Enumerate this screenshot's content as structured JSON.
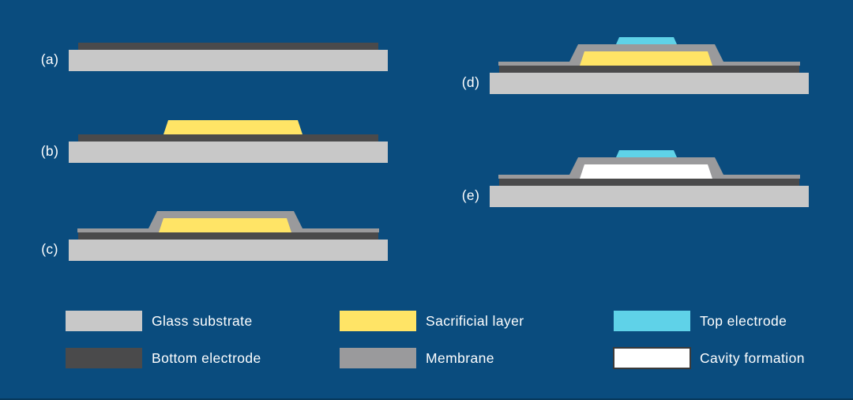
{
  "figure": {
    "background_color": "#0A4C7E",
    "bottom_edge_color": "#07395C",
    "text_color": "#FFFFFF"
  },
  "colors": {
    "glass_substrate": "#C8C8C8",
    "bottom_electrode": "#4A4A4B",
    "sacrificial_layer": "#FFE466",
    "membrane": "#9A9A9C",
    "top_electrode": "#5FD2E8",
    "cavity": "#FFFFFF",
    "cavity_border": "#3A3A3A"
  },
  "steps": [
    {
      "label": "(a)",
      "layers": [
        "glass_substrate",
        "bottom_electrode"
      ]
    },
    {
      "label": "(b)",
      "layers": [
        "glass_substrate",
        "bottom_electrode",
        "sacrificial_layer"
      ]
    },
    {
      "label": "(c)",
      "layers": [
        "glass_substrate",
        "bottom_electrode",
        "membrane",
        "sacrificial_layer"
      ]
    },
    {
      "label": "(d)",
      "layers": [
        "glass_substrate",
        "bottom_electrode",
        "membrane",
        "sacrificial_layer",
        "top_electrode"
      ]
    },
    {
      "label": "(e)",
      "layers": [
        "glass_substrate",
        "bottom_electrode",
        "membrane",
        "cavity",
        "top_electrode"
      ]
    }
  ],
  "legend": [
    {
      "label": "Glass substrate",
      "color_key": "glass_substrate",
      "border": false
    },
    {
      "label": "Bottom electrode",
      "color_key": "bottom_electrode",
      "border": false
    },
    {
      "label": "Sacrificial layer",
      "color_key": "sacrificial_layer",
      "border": false
    },
    {
      "label": "Membrane",
      "color_key": "membrane",
      "border": false
    },
    {
      "label": "Top electrode",
      "color_key": "top_electrode",
      "border": false
    },
    {
      "label": "Cavity formation",
      "color_key": "cavity",
      "border": true
    }
  ]
}
